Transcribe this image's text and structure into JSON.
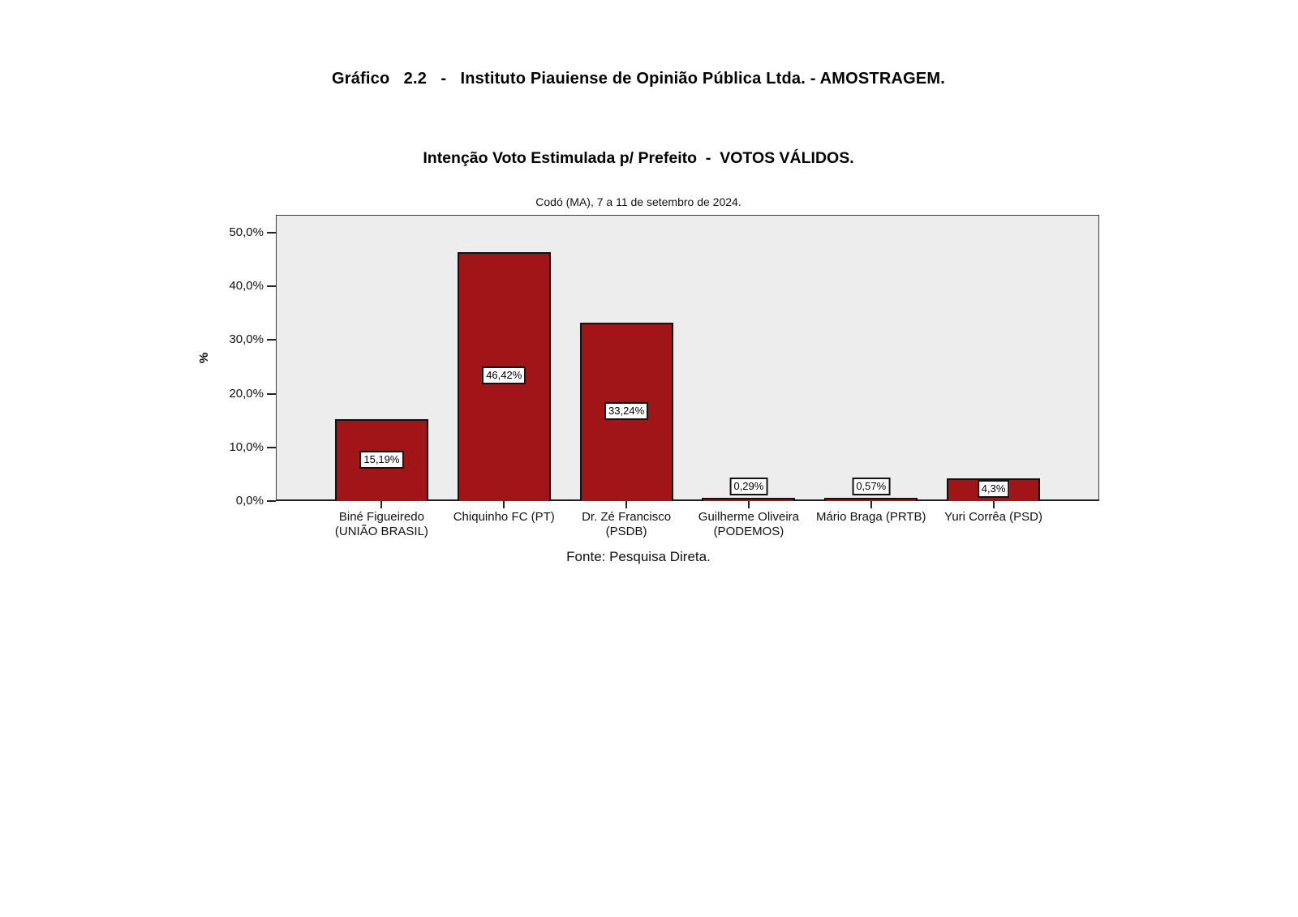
{
  "header": {
    "title": "Gráfico   2.2   -   Instituto Piauiense de Opinião Pública Ltda. - AMOSTRAGEM.",
    "subtitle": "Intenção Voto Estimulada p/ Prefeito  -  VOTOS VÁLIDOS."
  },
  "footer": {
    "source": "Fonte: Pesquisa Direta."
  },
  "chart_data": {
    "type": "bar",
    "title": "Codó (MA), 7 a 11 de setembro de 2024.",
    "categories": [
      "Biné Figueiredo (UNIÃO BRASIL)",
      "Chiquinho FC (PT)",
      "Dr. Zé Francisco (PSDB)",
      "Guilherme Oliveira (PODEMOS)",
      "Mário Braga (PRTB)",
      "Yuri Corrêa (PSD)"
    ],
    "category_lines": [
      [
        "Biné Figueiredo",
        "(UNIÃO BRASIL)"
      ],
      [
        "Chiquinho FC (PT)"
      ],
      [
        "Dr. Zé Francisco",
        "(PSDB)"
      ],
      [
        "Guilherme Oliveira",
        "(PODEMOS)"
      ],
      [
        "Mário Braga (PRTB)"
      ],
      [
        "Yuri Corrêa (PSD)"
      ]
    ],
    "values": [
      15.19,
      46.42,
      33.24,
      0.29,
      0.57,
      4.3
    ],
    "value_labels": [
      "15,19%",
      "46,42%",
      "33,24%",
      "0,29%",
      "0,57%",
      "4,3%"
    ],
    "xlabel": "",
    "ylabel": "%",
    "ylim": [
      0,
      53.3
    ],
    "yticks": {
      "values": [
        0,
        10,
        20,
        30,
        40,
        50
      ],
      "labels": [
        "0,0%",
        "10,0%",
        "20,0%",
        "30,0%",
        "40,0%",
        "50,0%"
      ]
    },
    "grid": false,
    "legend": false,
    "colors": {
      "bar_fill": "#a11518",
      "bar_border": "#111111",
      "plot_background": "#ededed",
      "plot_border": "#3c3c3c",
      "label_box_background": "#ffffff",
      "label_box_border": "#111111"
    }
  }
}
